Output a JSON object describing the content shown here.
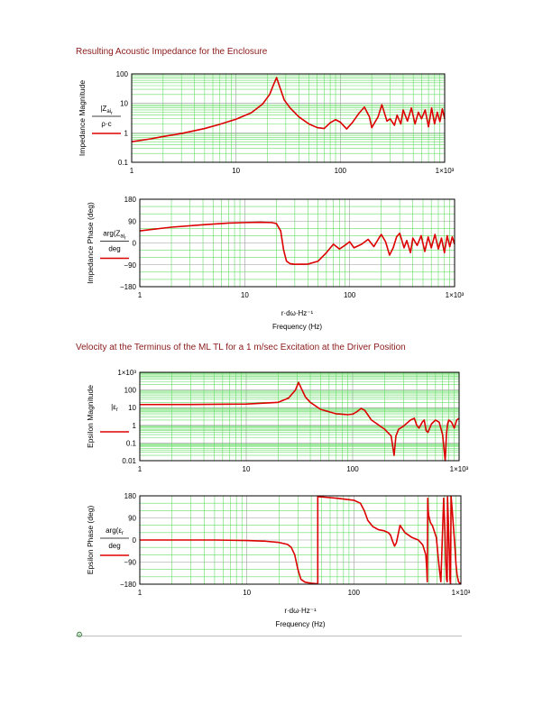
{
  "sections": [
    {
      "title": "Resulting Acoustic Impedance for the Enclosure"
    },
    {
      "title": "Velocity at the Terminus of the ML TL for a 1 m/sec Excitation at the Driver Position"
    }
  ],
  "chart_data": [
    {
      "type": "line",
      "title": "",
      "xlabel": "",
      "ylabel": "Impedance Magnitude",
      "y_expression": {
        "numerator": "|Z",
        "subscript": "ai",
        "sub2": "r",
        "denominator": "ρ·c"
      },
      "x_scale": "log",
      "y_scale": "log",
      "xlim": [
        1,
        1000
      ],
      "ylim": [
        0.1,
        100
      ],
      "xticks": [
        "1",
        "10",
        "100",
        "1×10³"
      ],
      "yticks": [
        "0.1",
        "1",
        "10",
        "100"
      ],
      "grid": true,
      "series": [
        {
          "color": "#dd0000",
          "x": [
            1,
            1.5,
            2,
            3,
            5,
            7,
            10,
            14,
            18,
            21,
            23,
            24.5,
            26,
            29,
            33,
            40,
            50,
            60,
            70,
            80,
            90,
            100,
            115,
            130,
            150,
            170,
            190,
            200,
            230,
            250,
            280,
            300,
            330,
            350,
            380,
            400,
            440,
            480,
            520,
            560,
            600,
            650,
            700,
            750,
            800,
            850,
            900,
            950,
            1000
          ],
          "y": [
            0.5,
            0.62,
            0.75,
            0.95,
            1.4,
            1.95,
            2.9,
            4.8,
            9.5,
            20,
            45,
            75,
            40,
            13,
            7,
            3.5,
            2,
            1.5,
            1.4,
            2.2,
            2.8,
            2.3,
            1.35,
            2.2,
            4.5,
            7.5,
            3.5,
            1.5,
            3.5,
            9,
            2.5,
            3,
            1.8,
            4,
            2,
            6,
            2.5,
            7,
            2,
            5,
            3,
            6,
            1.6,
            7,
            2,
            5,
            2.4,
            6.5,
            3
          ]
        }
      ]
    },
    {
      "type": "line",
      "title": "",
      "xlabel": "Frequency (Hz)",
      "x_expression": "r·dω·Hz⁻¹",
      "ylabel": "Impedance Phase (deg)",
      "y_expression": {
        "numerator": "arg(Z",
        "subscript": "ai",
        "sub2": "r",
        "denominator": "deg"
      },
      "x_scale": "log",
      "y_scale": "linear",
      "xlim": [
        1,
        1000
      ],
      "ylim": [
        -180,
        180
      ],
      "xticks": [
        "1",
        "10",
        "100",
        "1×10³"
      ],
      "yticks": [
        "−180",
        "−90",
        "0",
        "90",
        "180"
      ],
      "grid": true,
      "series": [
        {
          "color": "#dd0000",
          "x": [
            1,
            2,
            4,
            7,
            10,
            14,
            18,
            20,
            22,
            23.5,
            25,
            27,
            30,
            40,
            50,
            60,
            70,
            80,
            90,
            100,
            110,
            130,
            150,
            170,
            190,
            200,
            220,
            240,
            260,
            280,
            300,
            330,
            350,
            380,
            400,
            440,
            480,
            520,
            560,
            600,
            650,
            700,
            750,
            800,
            850,
            900,
            950,
            1000
          ],
          "y": [
            50,
            65,
            75,
            82,
            84,
            85,
            84,
            80,
            50,
            -30,
            -75,
            -85,
            -88,
            -87,
            -75,
            -40,
            -5,
            -25,
            -10,
            5,
            -20,
            -5,
            15,
            -15,
            20,
            35,
            5,
            -50,
            -20,
            25,
            40,
            -20,
            10,
            -40,
            20,
            -10,
            30,
            -35,
            25,
            -20,
            35,
            -25,
            20,
            -40,
            30,
            -15,
            25,
            -5
          ]
        }
      ]
    },
    {
      "type": "line",
      "title": "",
      "xlabel": "",
      "ylabel": "Epsilon Magnitude",
      "y_expression": {
        "numerator": "|ε",
        "subscript": "r",
        "denominator": ""
      },
      "x_scale": "log",
      "y_scale": "log",
      "xlim": [
        1,
        1000
      ],
      "ylim": [
        0.01,
        1000
      ],
      "xticks": [
        "1",
        "10",
        "100",
        "1×10³"
      ],
      "yticks": [
        "0.01",
        "0.1",
        "1",
        "10",
        "100",
        "1×10³"
      ],
      "grid": true,
      "series": [
        {
          "color": "#dd0000",
          "x": [
            1,
            3,
            10,
            20,
            25,
            29,
            31,
            33,
            36,
            40,
            50,
            70,
            90,
            100,
            110,
            120,
            130,
            150,
            200,
            230,
            245,
            255,
            270,
            300,
            350,
            380,
            400,
            420,
            450,
            470,
            490,
            510,
            550,
            600,
            650,
            700,
            720,
            740,
            760,
            780,
            800,
            850,
            900,
            950,
            1000
          ],
          "y": [
            15,
            15.2,
            16,
            20,
            35,
            100,
            270,
            120,
            40,
            20,
            8,
            4.5,
            4,
            4.3,
            6,
            9,
            7,
            2,
            0.6,
            0.25,
            0.02,
            0.25,
            0.6,
            0.9,
            2,
            2.5,
            1,
            0.7,
            1.5,
            2,
            0.5,
            0.4,
            1.2,
            2,
            1.5,
            0.3,
            0.05,
            0.01,
            0.3,
            1.2,
            2,
            1.5,
            0.7,
            2,
            2.5
          ]
        }
      ]
    },
    {
      "type": "line",
      "title": "",
      "xlabel": "Frequency (Hz)",
      "x_expression": "r·dω·Hz⁻¹",
      "ylabel": "Epsilon Phase (deg)",
      "y_expression": {
        "numerator": "arg(ε",
        "subscript": "r",
        "denominator": "deg"
      },
      "x_scale": "log",
      "y_scale": "linear",
      "xlim": [
        1,
        1000
      ],
      "ylim": [
        -180,
        180
      ],
      "xticks": [
        "1",
        "10",
        "100",
        "1×10³"
      ],
      "yticks": [
        "−180",
        "−90",
        "0",
        "90",
        "180"
      ],
      "grid": true,
      "series": [
        {
          "color": "#dd0000",
          "x": [
            1,
            5,
            10,
            15,
            20,
            24,
            26,
            28,
            30,
            32,
            35,
            40,
            44,
            46,
            46,
            48,
            55,
            70,
            100,
            115,
            125,
            135,
            150,
            170,
            190,
            210,
            220,
            230,
            240,
            250,
            270,
            300,
            350,
            400,
            440,
            470,
            480,
            485,
            490,
            495,
            500,
            520,
            540,
            560,
            590,
            610,
            630,
            650,
            690,
            700,
            710,
            720,
            735,
            745,
            750,
            760,
            780,
            790,
            800,
            810,
            830,
            850,
            880,
            900,
            920,
            950,
            980,
            1000
          ],
          "y": [
            0,
            0,
            -2,
            -5,
            -10,
            -18,
            -30,
            -60,
            -120,
            -160,
            -172,
            -176,
            -178,
            -178,
            178,
            176,
            174,
            170,
            162,
            150,
            120,
            80,
            55,
            42,
            38,
            30,
            20,
            -5,
            -25,
            -10,
            60,
            30,
            10,
            0,
            -20,
            -60,
            -120,
            -170,
            170,
            120,
            100,
            70,
            60,
            40,
            10,
            -60,
            -120,
            -170,
            170,
            100,
            30,
            -80,
            -160,
            -170,
            175,
            100,
            -60,
            -160,
            -178,
            178,
            120,
            60,
            -30,
            -100,
            -140,
            -170,
            -178,
            -175
          ]
        }
      ]
    }
  ]
}
